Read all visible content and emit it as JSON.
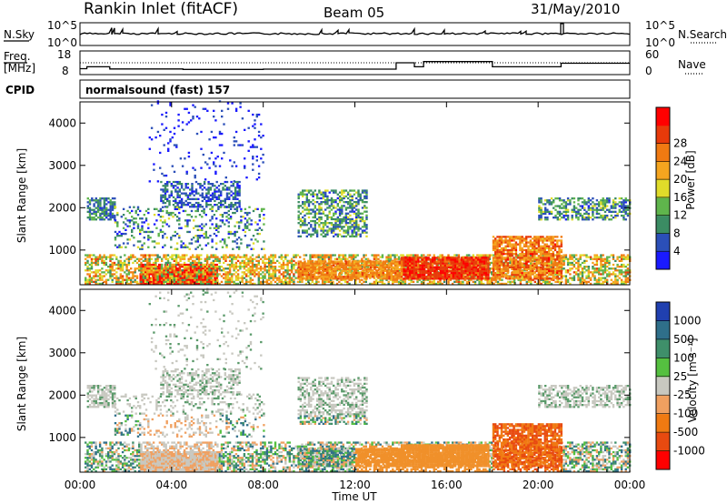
{
  "header": {
    "station": "Rankin Inlet (fitACF)",
    "beam": "Beam 05",
    "date": "31/May/2010"
  },
  "panels": {
    "nsky": {
      "label": "N.Sky",
      "ticks": [
        "10^5",
        "10^0"
      ],
      "right_label": "N.Search",
      "right_ticks": [
        "10^5",
        "10^0"
      ]
    },
    "freq": {
      "label_line1": "Freq.",
      "label_line2": "[MHz]",
      "ticks": [
        "18",
        "8"
      ],
      "right_label": "Nave",
      "right_ticks": [
        "60",
        "0"
      ]
    },
    "cpid": {
      "label": "CPID",
      "text": "normalsound (fast)  157"
    }
  },
  "chart_data": [
    {
      "type": "heatmap",
      "name": "power",
      "xlabel": "",
      "ylabel": "Slant Range [km]",
      "xlim": [
        0,
        24
      ],
      "ylim": [
        180,
        4500
      ],
      "y_ticks": [
        "1000",
        "2000",
        "3000",
        "4000"
      ],
      "colorbar": {
        "label": "Power [dB]",
        "ticks": [
          "4",
          "8",
          "12",
          "16",
          "20",
          "24",
          "28"
        ],
        "colors": [
          "#1a1aff",
          "#2b4fb8",
          "#3b8c63",
          "#5fb54c",
          "#e0dc2a",
          "#f5a51f",
          "#f07a12",
          "#e83a0a",
          "#ff0000"
        ]
      }
    },
    {
      "type": "heatmap",
      "name": "velocity",
      "xlabel": "Time UT",
      "ylabel": "Slant Range [km]",
      "xlim": [
        0,
        24
      ],
      "ylim": [
        180,
        4500
      ],
      "x_ticks": [
        "00:00",
        "04:00",
        "08:00",
        "12:00",
        "16:00",
        "20:00",
        "00:00"
      ],
      "y_ticks": [
        "1000",
        "2000",
        "3000",
        "4000"
      ],
      "colorbar": {
        "label": "Velocity [m s⁻¹]",
        "ticks": [
          "1000",
          "500",
          "100",
          "25",
          "-25",
          "-100",
          "-500",
          "-1000"
        ],
        "colors": [
          "#2040b0",
          "#2f6f8a",
          "#3f8f6a",
          "#55c040",
          "#c8c8c0",
          "#f0a060",
          "#f07a12",
          "#e84a10",
          "#ff0000"
        ]
      }
    }
  ]
}
